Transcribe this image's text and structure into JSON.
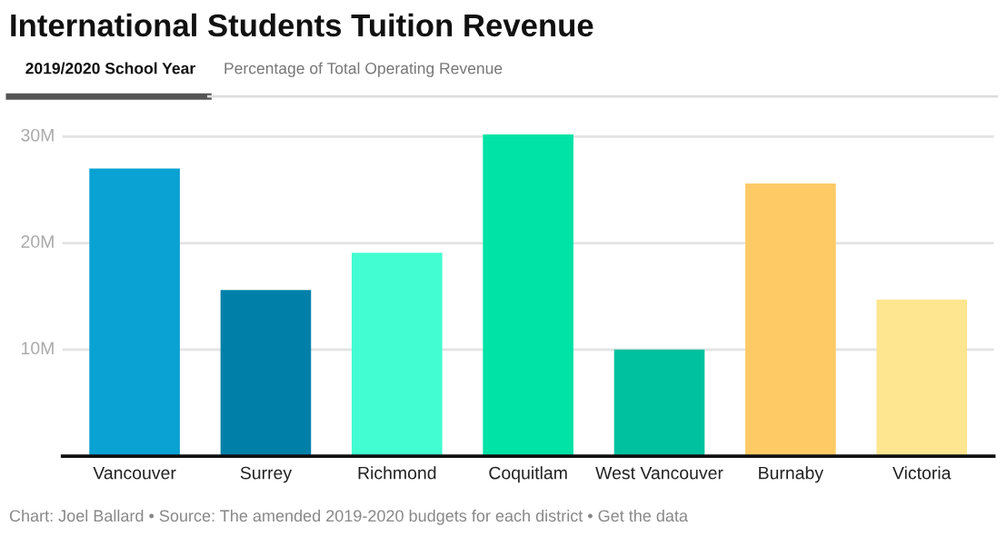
{
  "chart_data": {
    "type": "bar",
    "title": "International Students Tuition Revenue",
    "subtitle": "2019/2020 School Year",
    "annotations": [
      "Percentage of Total Operating Revenue",
      "Chart: Joel Ballard • Source: The amended 2019-2020 budgets for each district • Get the data"
    ],
    "categories": [
      "Vancouver",
      "Surrey",
      "Richmond",
      "Coquitlam",
      "West Vancouver",
      "Burnaby",
      "Victoria"
    ],
    "values": [
      27.0,
      15.6,
      19.1,
      30.2,
      10.0,
      25.6,
      14.7
    ],
    "colors": [
      "#0aa1d3",
      "#0080a8",
      "#42fdd1",
      "#00e3a6",
      "#00c19f",
      "#fdca66",
      "#fee590"
    ],
    "ylim": [
      0,
      30.2
    ],
    "yticks": [
      {
        "value": 10,
        "label": "10M"
      },
      {
        "value": 20,
        "label": "20M"
      },
      {
        "value": 30,
        "label": "30M"
      }
    ],
    "grid": "y"
  }
}
